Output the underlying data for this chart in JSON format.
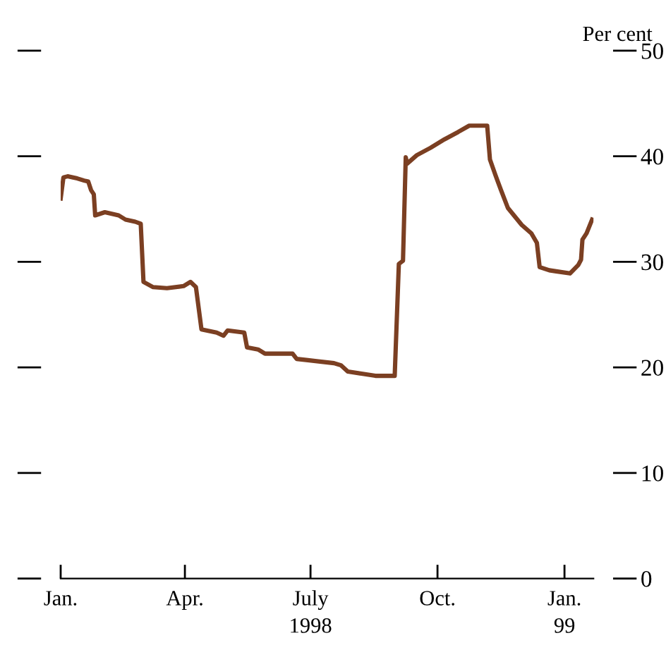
{
  "chart_data": {
    "type": "line",
    "ylabel": "Per cent",
    "color": "#7b3f22",
    "x": [
      "1998-01-01",
      "1998-01-03",
      "1998-01-06",
      "1998-01-13",
      "1998-01-18",
      "1998-01-21",
      "1998-01-23",
      "1998-01-25",
      "1998-01-26",
      "1998-02-02",
      "1998-02-12",
      "1998-02-17",
      "1998-02-24",
      "1998-02-28",
      "1998-03-02",
      "1998-03-09",
      "1998-03-19",
      "1998-03-31",
      "1998-04-05",
      "1998-04-09",
      "1998-04-13",
      "1998-04-24",
      "1998-04-29",
      "1998-05-02",
      "1998-05-14",
      "1998-05-16",
      "1998-05-24",
      "1998-05-29",
      "1998-06-18",
      "1998-06-21",
      "1998-06-28",
      "1998-07-18",
      "1998-07-23",
      "1998-07-28",
      "1998-08-07",
      "1998-08-17",
      "1998-08-31",
      "1998-09-03",
      "1998-09-06",
      "1998-09-08",
      "1998-09-09",
      "1998-09-16",
      "1998-09-26",
      "1998-10-06",
      "1998-10-16",
      "1998-10-24",
      "1998-11-06",
      "1998-11-08",
      "1998-11-12",
      "1998-11-16",
      "1998-11-21",
      "1998-12-01",
      "1998-12-08",
      "1998-12-12",
      "1998-12-14",
      "1998-12-21",
      "1998-12-26",
      "1999-01-05",
      "1999-01-11",
      "1999-01-13",
      "1999-01-14",
      "1999-01-17",
      "1999-01-21"
    ],
    "values": [
      36.0,
      38.0,
      38.1,
      37.9,
      37.7,
      37.6,
      36.8,
      36.4,
      34.4,
      34.7,
      34.4,
      34.0,
      33.8,
      33.6,
      28.1,
      27.6,
      27.5,
      27.7,
      28.1,
      27.6,
      23.6,
      23.3,
      23.0,
      23.5,
      23.3,
      21.9,
      21.7,
      21.3,
      21.3,
      20.8,
      20.7,
      20.4,
      20.2,
      19.6,
      19.4,
      19.2,
      19.2,
      29.8,
      30.1,
      39.9,
      39.3,
      40.1,
      40.8,
      41.6,
      42.3,
      42.9,
      42.9,
      39.7,
      38.2,
      36.8,
      35.1,
      33.5,
      32.7,
      31.8,
      29.5,
      29.2,
      29.1,
      28.9,
      29.7,
      30.2,
      32.1,
      32.7,
      34.0
    ],
    "xlim": [
      "1998-01-01",
      "1999-01-22"
    ],
    "xticks": [
      {
        "value": "1998-01-01",
        "label": "Jan."
      },
      {
        "value": "1998-04-01",
        "label": "Apr."
      },
      {
        "value": "1998-07-01",
        "label": "July"
      },
      {
        "value": "1998-10-01",
        "label": "Oct."
      },
      {
        "value": "1999-01-01",
        "label": "Jan."
      }
    ],
    "x2lim": [
      "1998-01-01",
      "1999-01-22"
    ],
    "x2ticks": [
      {
        "value": "1998-07-01",
        "label": "1998"
      },
      {
        "value": "1999-01-01",
        "label": "99"
      }
    ],
    "ylim": [
      0,
      50
    ],
    "yticks": [
      0,
      10,
      20,
      30,
      40,
      50
    ],
    "grid": false,
    "legend": false,
    "marker": "none",
    "line_style": "solid"
  }
}
